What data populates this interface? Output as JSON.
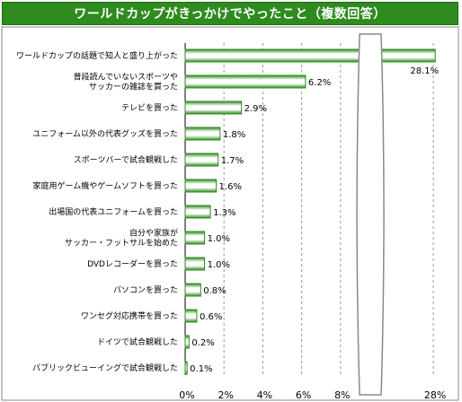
{
  "chart_data": {
    "type": "bar",
    "orientation": "horizontal",
    "title": "ワールドカップがきっかけでやったこと（複数回答）",
    "categories": [
      "ワールドカップの話題で知人と盛り上がった",
      "普段読んでいないスポーツや\nサッカーの雑誌を買った",
      "テレビを買った",
      "ユニフォーム以外の代表グッズを買った",
      "スポーツバーで試合観戦した",
      "家庭用ゲーム機やゲームソフトを買った",
      "出場国の代表ユニフォームを買った",
      "自分や家族が\nサッカー・フットサルを始めた",
      "DVDレコーダーを買った",
      "パソコンを買った",
      "ワンセグ対応携帯を買った",
      "ドイツで試合観戦した",
      "パブリックビューイングで試合観戦した"
    ],
    "values": [
      28.1,
      6.2,
      2.9,
      1.8,
      1.7,
      1.6,
      1.3,
      1.0,
      1.0,
      0.8,
      0.6,
      0.2,
      0.1
    ],
    "value_labels": [
      "28.1%",
      "6.2%",
      "2.9%",
      "1.8%",
      "1.7%",
      "1.6%",
      "1.3%",
      "1.0%",
      "1.0%",
      "0.8%",
      "0.6%",
      "0.2%",
      "0.1%"
    ],
    "x_ticks": [
      "0%",
      "2%",
      "4%",
      "6%",
      "8%",
      "28%"
    ],
    "x_tick_values": [
      0,
      2,
      4,
      6,
      8,
      28
    ],
    "axis_break": [
      8.8,
      25.5
    ],
    "grid": "vertical dashed",
    "colors": {
      "bar_edge": "#2e8b1e",
      "bar_mid": "#ffffff",
      "title_bg": "#2e8b1e",
      "title_text": "#ffffff"
    }
  }
}
